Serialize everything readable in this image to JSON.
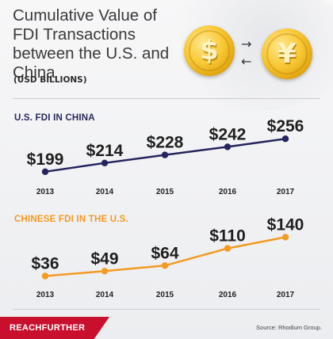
{
  "title": "Cumulative Value of FDI Transactions between the U.S. and China",
  "subtitle": "(USD BILLIONS)",
  "icons": {
    "usd_coin": "dollar-coin-icon",
    "cny_coin": "yuan-coin-icon",
    "exchange": "exchange-arrows-icon"
  },
  "coins": {
    "usd_symbol": "$",
    "cny_symbol": "¥",
    "arrow_right": "→",
    "arrow_left": "←"
  },
  "colors": {
    "us_series": "#25245e",
    "cn_series": "#f39a21",
    "brand": "#c8102e"
  },
  "chart_data": [
    {
      "type": "line",
      "title": "U.S. FDI IN CHINA",
      "categories": [
        "2013",
        "2014",
        "2015",
        "2016",
        "2017"
      ],
      "values": [
        199,
        214,
        228,
        242,
        256
      ],
      "labels": [
        "$199",
        "$214",
        "$228",
        "$242",
        "$256"
      ],
      "ylim": [
        185,
        270
      ],
      "grid": false
    },
    {
      "type": "line",
      "title": "CHINESE FDI IN THE U.S.",
      "categories": [
        "2013",
        "2014",
        "2015",
        "2016",
        "2017"
      ],
      "values": [
        36,
        49,
        64,
        110,
        140
      ],
      "labels": [
        "$36",
        "$49",
        "$64",
        "$110",
        "$140"
      ],
      "ylim": [
        20,
        160
      ],
      "grid": false
    }
  ],
  "footer": {
    "brand": "REACHFURTHER",
    "source": "Source: Rhodium Group."
  }
}
